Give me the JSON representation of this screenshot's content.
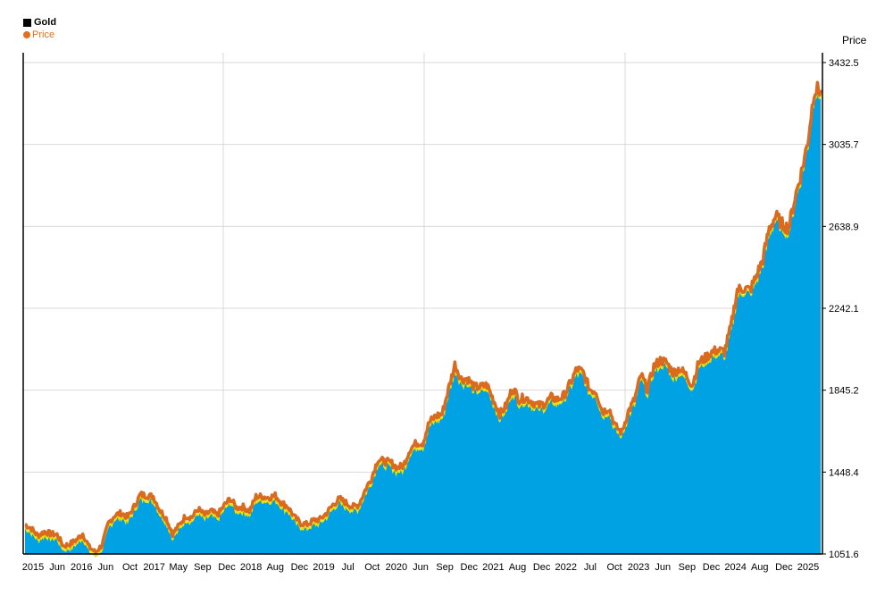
{
  "legend": {
    "title": "Gold",
    "series_label": "Price",
    "title_color": "#000000",
    "series_color": "#e07020"
  },
  "chart_data": {
    "type": "area",
    "title": "Gold",
    "ylabel": "Price",
    "ylim": [
      1051.6,
      3432.5
    ],
    "y_ticks": [
      1051.6,
      1448.4,
      1845.2,
      2242.1,
      2638.9,
      3035.7,
      3432.5
    ],
    "y_tick_labels": [
      "1051.6",
      "1448.4",
      "1845.2",
      "2242.1",
      "2638.9",
      "3035.7",
      "3432.5"
    ],
    "x_tick_labels": [
      "2015",
      "Jun",
      "2016",
      "Jun",
      "Oct",
      "2017",
      "May",
      "Sep",
      "Dec",
      "2018",
      "Aug",
      "Dec",
      "2019",
      "Jul",
      "Oct",
      "2020",
      "Jun",
      "Sep",
      "Dec",
      "2021",
      "Aug",
      "Dec",
      "2022",
      "Jul",
      "Oct",
      "2023",
      "Jun",
      "Sep",
      "Dec",
      "2024",
      "Aug",
      "Dec",
      "2025"
    ],
    "x_range": [
      "2015-01",
      "2025-05"
    ],
    "grid": true,
    "legend_position": "top-left",
    "colors": {
      "fill": "#00a2e3",
      "line": "#d96a1e",
      "edge": "#f0e000",
      "grid": "#d9d9d9"
    },
    "series": [
      {
        "name": "Price",
        "x": [
          "2015-01",
          "2015-02",
          "2015-03",
          "2015-04",
          "2015-05",
          "2015-06",
          "2015-07",
          "2015-08",
          "2015-09",
          "2015-10",
          "2015-11",
          "2015-12",
          "2016-01",
          "2016-02",
          "2016-03",
          "2016-04",
          "2016-05",
          "2016-06",
          "2016-07",
          "2016-08",
          "2016-09",
          "2016-10",
          "2016-11",
          "2016-12",
          "2017-01",
          "2017-02",
          "2017-03",
          "2017-04",
          "2017-05",
          "2017-06",
          "2017-07",
          "2017-08",
          "2017-09",
          "2017-10",
          "2017-11",
          "2017-12",
          "2018-01",
          "2018-02",
          "2018-03",
          "2018-04",
          "2018-05",
          "2018-06",
          "2018-07",
          "2018-08",
          "2018-09",
          "2018-10",
          "2018-11",
          "2018-12",
          "2019-01",
          "2019-02",
          "2019-03",
          "2019-04",
          "2019-05",
          "2019-06",
          "2019-07",
          "2019-08",
          "2019-09",
          "2019-10",
          "2019-11",
          "2019-12",
          "2020-01",
          "2020-02",
          "2020-03",
          "2020-04",
          "2020-05",
          "2020-06",
          "2020-07",
          "2020-08",
          "2020-09",
          "2020-10",
          "2020-11",
          "2020-12",
          "2021-01",
          "2021-02",
          "2021-03",
          "2021-04",
          "2021-05",
          "2021-06",
          "2021-07",
          "2021-08",
          "2021-09",
          "2021-10",
          "2021-11",
          "2021-12",
          "2022-01",
          "2022-02",
          "2022-03",
          "2022-04",
          "2022-05",
          "2022-06",
          "2022-07",
          "2022-08",
          "2022-09",
          "2022-10",
          "2022-11",
          "2022-12",
          "2023-01",
          "2023-02",
          "2023-03",
          "2023-04",
          "2023-05",
          "2023-06",
          "2023-07",
          "2023-08",
          "2023-09",
          "2023-10",
          "2023-11",
          "2023-12",
          "2024-01",
          "2024-02",
          "2024-03",
          "2024-04",
          "2024-05",
          "2024-06",
          "2024-07",
          "2024-08",
          "2024-09",
          "2024-10",
          "2024-11",
          "2024-12",
          "2025-01",
          "2025-02",
          "2025-03",
          "2025-04",
          "2025-05"
        ],
        "values": [
          1195,
          1175,
          1140,
          1160,
          1150,
          1145,
          1090,
          1100,
          1120,
          1150,
          1085,
          1060,
          1095,
          1200,
          1240,
          1250,
          1230,
          1280,
          1340,
          1335,
          1330,
          1265,
          1225,
          1150,
          1190,
          1235,
          1230,
          1270,
          1240,
          1260,
          1240,
          1285,
          1320,
          1275,
          1280,
          1260,
          1330,
          1330,
          1325,
          1335,
          1300,
          1280,
          1230,
          1200,
          1195,
          1215,
          1220,
          1250,
          1290,
          1320,
          1300,
          1280,
          1290,
          1360,
          1420,
          1510,
          1500,
          1495,
          1470,
          1480,
          1560,
          1590,
          1590,
          1690,
          1720,
          1730,
          1850,
          1970,
          1900,
          1900,
          1860,
          1860,
          1870,
          1800,
          1730,
          1770,
          1860,
          1800,
          1810,
          1790,
          1770,
          1780,
          1810,
          1800,
          1820,
          1880,
          1950,
          1930,
          1850,
          1840,
          1740,
          1760,
          1670,
          1640,
          1740,
          1800,
          1920,
          1850,
          1960,
          1990,
          1980,
          1930,
          1950,
          1920,
          1870,
          1980,
          2000,
          2030,
          2040,
          2030,
          2150,
          2330,
          2340,
          2330,
          2400,
          2480,
          2630,
          2690,
          2650,
          2630,
          2780,
          2900,
          3050,
          3300,
          3300
        ]
      }
    ]
  }
}
